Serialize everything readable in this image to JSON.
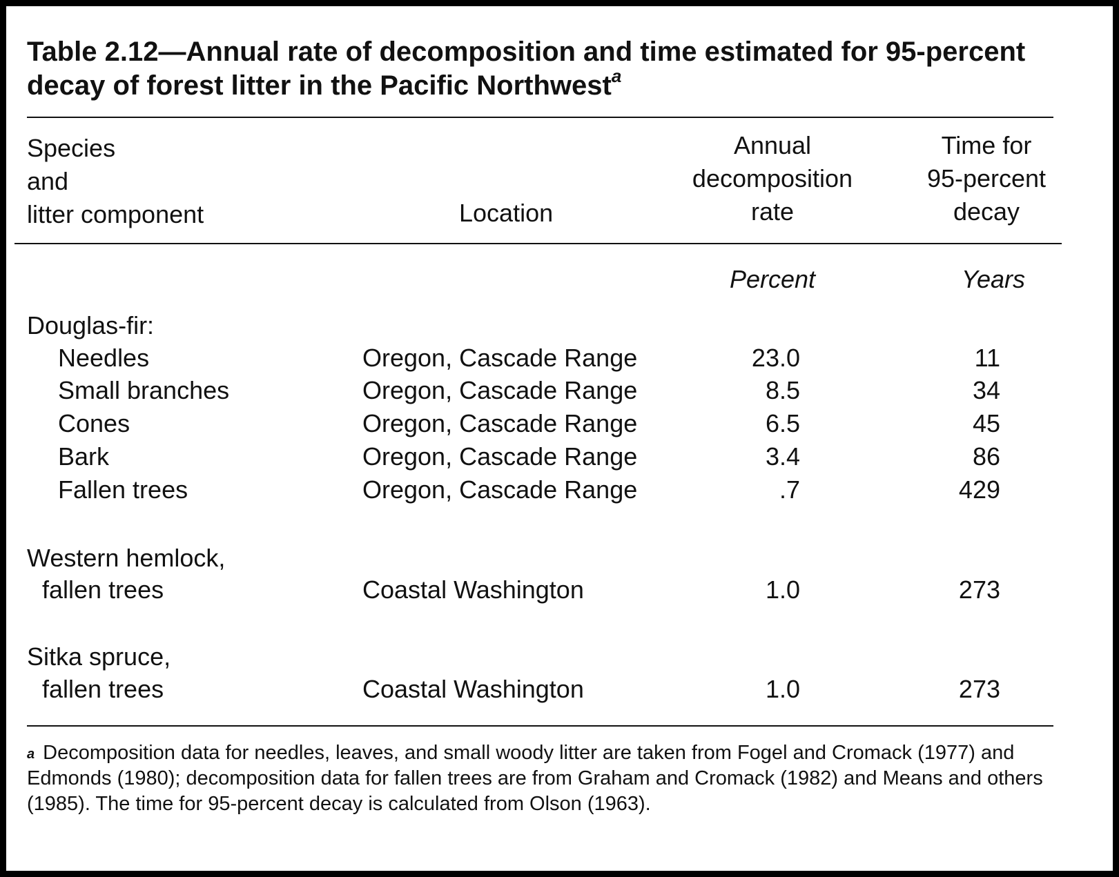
{
  "table": {
    "title": "Table 2.12—Annual rate of decomposition and time estimated for 95-percent decay of forest litter in the Pacific Northwest",
    "title_footnote_mark": "a",
    "headers": {
      "species_line1": "Species",
      "species_line2": "and",
      "species_line3": "litter component",
      "location": "Location",
      "rate_line1": "Annual",
      "rate_line2": "decomposition",
      "rate_line3": "rate",
      "time_line1": "Time for",
      "time_line2": "95-percent",
      "time_line3": "decay"
    },
    "units": {
      "rate": "Percent",
      "time": "Years"
    },
    "groups": [
      {
        "heading": "Douglas-fir:",
        "rows": [
          {
            "component": "Needles",
            "location": "Oregon, Cascade Range",
            "rate": "23.0",
            "years": "11"
          },
          {
            "component": "Small branches",
            "location": "Oregon, Cascade Range",
            "rate": "8.5",
            "years": "34"
          },
          {
            "component": "Cones",
            "location": "Oregon, Cascade Range",
            "rate": "6.5",
            "years": "45"
          },
          {
            "component": "Bark",
            "location": "Oregon, Cascade Range",
            "rate": "3.4",
            "years": "86"
          },
          {
            "component": "Fallen trees",
            "location": "Oregon, Cascade Range",
            "rate": ".7",
            "years": "429"
          }
        ]
      },
      {
        "heading": "Western hemlock,",
        "rows": [
          {
            "component": "fallen trees",
            "location": "Coastal Washington",
            "rate": "1.0",
            "years": "273"
          }
        ]
      },
      {
        "heading": "Sitka spruce,",
        "rows": [
          {
            "component": "fallen trees",
            "location": "Coastal Washington",
            "rate": "1.0",
            "years": "273"
          }
        ]
      }
    ],
    "footnote_mark": "a",
    "footnote": "Decomposition data for needles, leaves, and small woody litter are taken from Fogel and Cromack (1977) and Edmonds (1980); decomposition data for fallen trees are from Graham and Cromack (1982) and Means and others (1985). The time for 95-percent decay is calculated from Olson (1963)."
  }
}
